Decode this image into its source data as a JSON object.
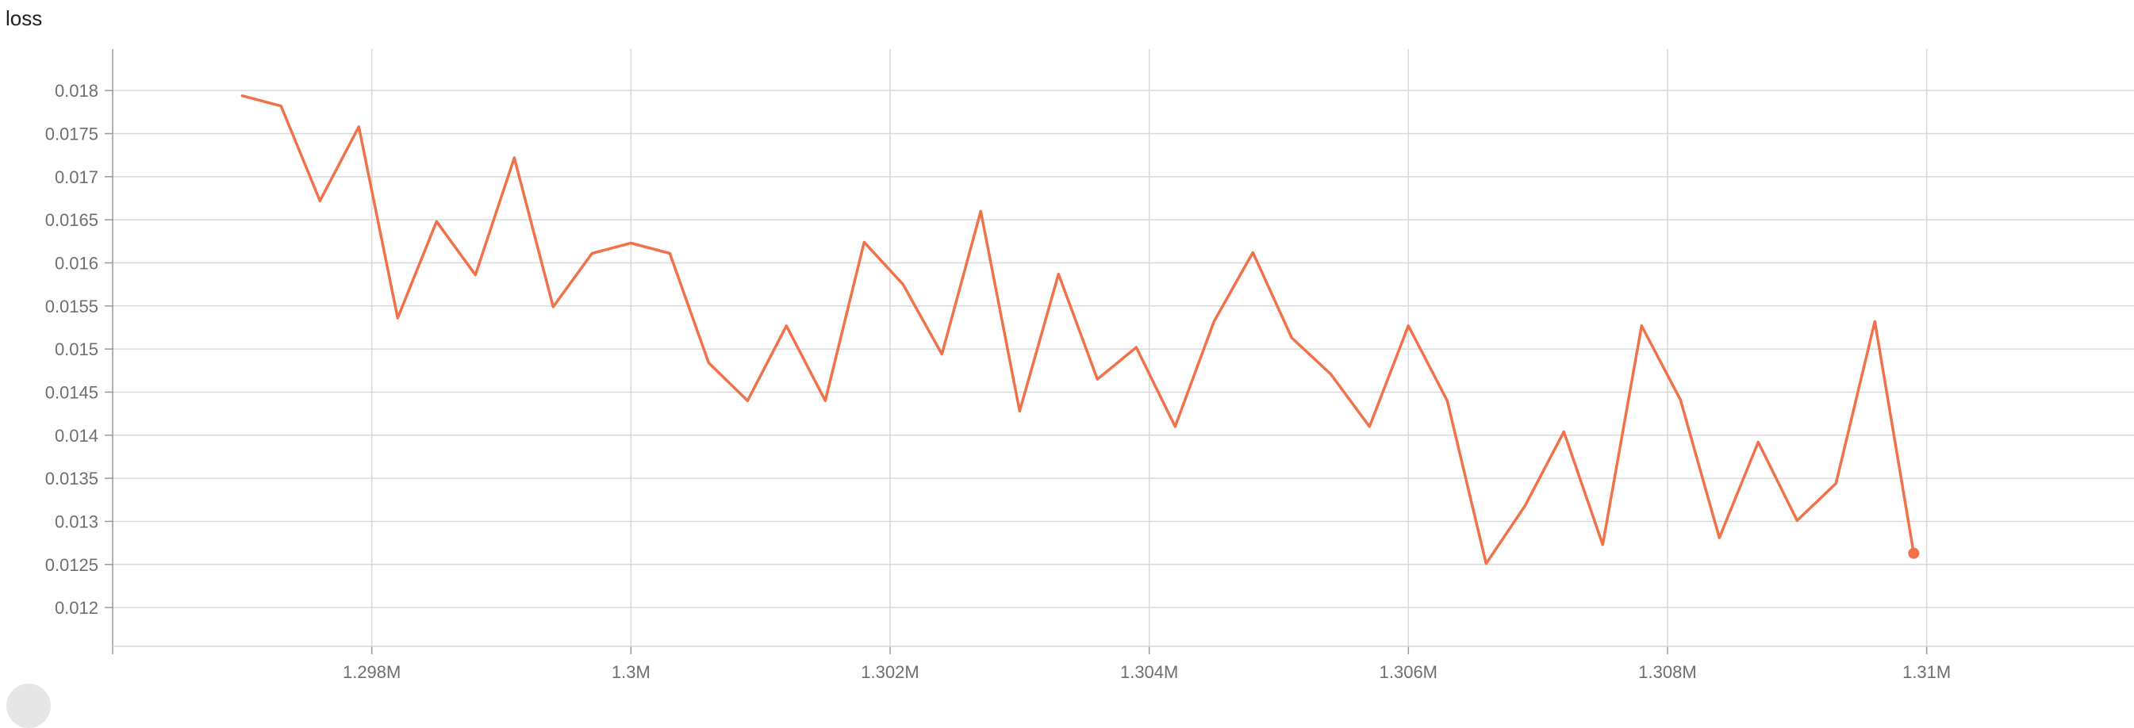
{
  "chart_title": "loss",
  "chart_data": {
    "type": "line",
    "title": "loss",
    "xlabel": "",
    "ylabel": "",
    "xlim": [
      1.296,
      1.3116
    ],
    "ylim": [
      0.01155,
      0.01848
    ],
    "x_ticks": [
      1.298,
      1.3,
      1.302,
      1.304,
      1.306,
      1.308,
      1.31
    ],
    "x_tick_labels": [
      "1.298M",
      "1.3M",
      "1.302M",
      "1.304M",
      "1.306M",
      "1.308M",
      "1.31M"
    ],
    "y_ticks": [
      0.012,
      0.0125,
      0.013,
      0.0135,
      0.014,
      0.0145,
      0.015,
      0.0155,
      0.016,
      0.0165,
      0.017,
      0.0175,
      0.018
    ],
    "y_tick_labels": [
      "0.012",
      "0.0125",
      "0.013",
      "0.0135",
      "0.014",
      "0.0145",
      "0.015",
      "0.0155",
      "0.016",
      "0.0165",
      "0.017",
      "0.0175",
      "0.018"
    ],
    "grid": true,
    "series": [
      {
        "color": "#f0724a",
        "x": [
          1.297,
          1.2973,
          1.2976,
          1.2979,
          1.2982,
          1.2985,
          1.2988,
          1.2991,
          1.2994,
          1.2997,
          1.3,
          1.3003,
          1.3006,
          1.3009,
          1.3012,
          1.3015,
          1.3018,
          1.3021,
          1.3024,
          1.3027,
          1.303,
          1.3033,
          1.3036,
          1.3039,
          1.3042,
          1.3045,
          1.3048,
          1.3051,
          1.3054,
          1.3057,
          1.306,
          1.3063,
          1.3066,
          1.3069,
          1.3072,
          1.3075,
          1.3078,
          1.3081,
          1.3084,
          1.3087,
          1.309,
          1.3093,
          1.3096,
          1.3099
        ],
        "values": [
          0.01794,
          0.01782,
          0.01672,
          0.01758,
          0.01536,
          0.01648,
          0.01586,
          0.01722,
          0.01549,
          0.01611,
          0.01623,
          0.01611,
          0.01484,
          0.0144,
          0.01527,
          0.0144,
          0.01624,
          0.01575,
          0.01494,
          0.0166,
          0.01428,
          0.01587,
          0.01465,
          0.01502,
          0.0141,
          0.01532,
          0.01612,
          0.01513,
          0.01471,
          0.0141,
          0.01527,
          0.0144,
          0.01251,
          0.01318,
          0.01404,
          0.01273,
          0.01527,
          0.01441,
          0.01281,
          0.01392,
          0.01301,
          0.01344,
          0.01532,
          0.01263
        ]
      }
    ]
  }
}
